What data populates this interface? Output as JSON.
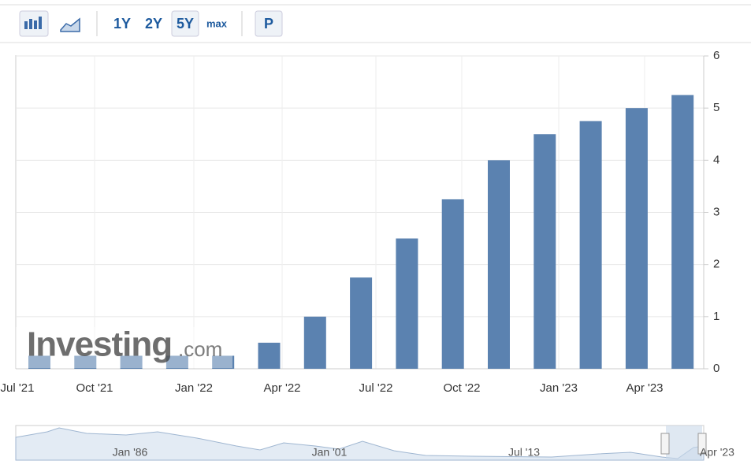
{
  "toolbar": {
    "ranges": [
      "1Y",
      "2Y",
      "5Y",
      "max"
    ],
    "active_range": 2,
    "p_button": "P"
  },
  "watermark": {
    "main": "Investing",
    "suffix": ".com"
  },
  "chart_data": {
    "type": "bar",
    "categories": [
      null,
      null,
      null,
      null,
      null,
      null,
      null,
      null,
      null,
      null,
      null,
      null,
      null,
      null,
      null
    ],
    "values": [
      0.25,
      0.25,
      0.25,
      0.25,
      0.25,
      0.5,
      1.0,
      1.75,
      2.5,
      3.25,
      4.0,
      4.5,
      4.75,
      5.0,
      5.25
    ],
    "color": "#5b82b0",
    "x_labels": [
      "Jul '21",
      "Oct '21",
      "Jan '22",
      "Apr '22",
      "Jul '22",
      "Oct '22",
      "Jan '23",
      "Apr '23"
    ],
    "ylim": [
      0,
      6
    ],
    "yticks": [
      0,
      1,
      2,
      3,
      4,
      5,
      6
    ],
    "grid": true,
    "y_axis_side": "right"
  },
  "navigator": {
    "labels": [
      "Jan '86",
      "Jan '01",
      "Jul '13",
      "Apr '23"
    ]
  }
}
